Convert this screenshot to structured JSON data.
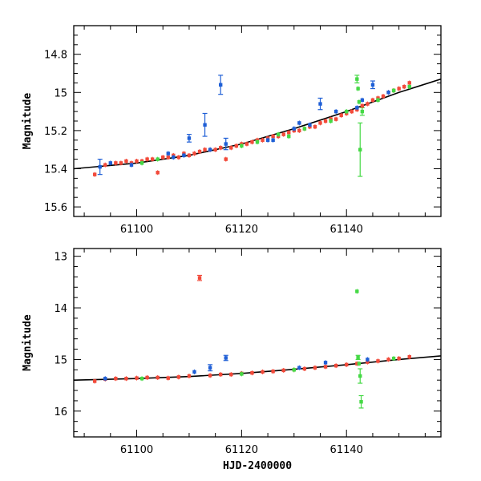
{
  "chart_data": [
    {
      "type": "scatter",
      "title": "",
      "xlabel": "",
      "ylabel": "Magnitude",
      "xlim": [
        61088,
        61158
      ],
      "ylim": [
        15.65,
        14.65
      ],
      "y_inverted": true,
      "xticks": [
        61100,
        61120,
        61140
      ],
      "yticks": [
        14.8,
        15,
        15.2,
        15.4,
        15.6
      ],
      "ytick_labels": [
        "14.8",
        "15",
        "15.2",
        "15.4",
        "15.6"
      ],
      "fit_curve": {
        "name": "model",
        "color": "#000000",
        "x": [
          61088,
          61100,
          61110,
          61120,
          61130,
          61140,
          61150,
          61158
        ],
        "y": [
          15.4,
          15.37,
          15.33,
          15.27,
          15.19,
          15.1,
          15.0,
          14.93
        ]
      },
      "series": [
        {
          "name": "red",
          "color": "#f24a3a",
          "x": [
            61092,
            61094,
            61096,
            61097,
            61098,
            61099,
            61100,
            61101,
            61102,
            61103,
            61104,
            61105,
            61106,
            61107,
            61108,
            61109,
            61110,
            61111,
            61112,
            61113,
            61114,
            61115,
            61116,
            61117,
            61118,
            61119,
            61120,
            61121,
            61122,
            61123,
            61124,
            61125,
            61126,
            61127,
            61128,
            61129,
            61130,
            61131,
            61132,
            61133,
            61134,
            61135,
            61136,
            61137,
            61138,
            61139,
            61140,
            61141,
            61142,
            61143,
            61144,
            61145,
            61146,
            61147,
            61148,
            61149,
            61150,
            61151,
            61152
          ],
          "y": [
            15.43,
            15.38,
            15.37,
            15.37,
            15.36,
            15.37,
            15.36,
            15.36,
            15.35,
            15.35,
            15.42,
            15.34,
            15.34,
            15.33,
            15.34,
            15.32,
            15.33,
            15.32,
            15.31,
            15.3,
            15.3,
            15.3,
            15.29,
            15.35,
            15.29,
            15.28,
            15.27,
            15.27,
            15.26,
            15.25,
            15.25,
            15.24,
            15.23,
            15.23,
            15.22,
            15.21,
            15.2,
            15.2,
            15.19,
            15.18,
            15.18,
            15.16,
            15.15,
            15.14,
            15.14,
            15.12,
            15.11,
            15.1,
            15.09,
            15.07,
            15.06,
            15.04,
            15.03,
            15.02,
            15.0,
            14.99,
            14.98,
            14.97,
            14.95
          ]
        },
        {
          "name": "blue",
          "color": "#1f5fd6",
          "x": [
            61093,
            61095,
            61099,
            61106,
            61107,
            61109,
            61110,
            61113,
            61114,
            61116,
            61117,
            61125,
            61126,
            61130,
            61131,
            61133,
            61135,
            61138,
            61142,
            61143,
            61145,
            61148
          ],
          "y": [
            15.39,
            15.37,
            15.38,
            15.32,
            15.34,
            15.33,
            15.24,
            15.17,
            15.3,
            14.96,
            15.27,
            15.25,
            15.25,
            15.19,
            15.16,
            15.17,
            15.06,
            15.1,
            15.08,
            15.04,
            14.96,
            15.0
          ]
        },
        {
          "name": "green",
          "color": "#45d945",
          "x": [
            61101,
            61104,
            61120,
            61123,
            61127,
            61129,
            61132,
            61137,
            61140,
            61142,
            61142.2,
            61142.4,
            61142.6,
            61143,
            61146,
            61149,
            61152
          ],
          "y": [
            15.37,
            15.35,
            15.28,
            15.26,
            15.22,
            15.23,
            15.19,
            15.15,
            15.1,
            14.93,
            14.98,
            15.05,
            15.3,
            15.1,
            15.04,
            14.99,
            14.97
          ]
        }
      ],
      "error_bars": [
        {
          "series": "blue",
          "x": 61093,
          "y": 15.39,
          "err": 0.04
        },
        {
          "series": "blue",
          "x": 61110,
          "y": 15.24,
          "err": 0.02
        },
        {
          "series": "blue",
          "x": 61113,
          "y": 15.17,
          "err": 0.06
        },
        {
          "series": "blue",
          "x": 61116,
          "y": 14.96,
          "err": 0.05
        },
        {
          "series": "blue",
          "x": 61117,
          "y": 15.27,
          "err": 0.03
        },
        {
          "series": "blue",
          "x": 61135,
          "y": 15.06,
          "err": 0.03
        },
        {
          "series": "blue",
          "x": 61145,
          "y": 14.96,
          "err": 0.02
        },
        {
          "series": "green",
          "x": 61142.6,
          "y": 15.3,
          "err": 0.14
        },
        {
          "series": "green",
          "x": 61142,
          "y": 14.93,
          "err": 0.02
        },
        {
          "series": "green",
          "x": 61143,
          "y": 15.1,
          "err": 0.02
        }
      ]
    },
    {
      "type": "scatter",
      "title": "",
      "xlabel": "HJD-2400000",
      "ylabel": "Magnitude",
      "xlim": [
        61088,
        61158
      ],
      "ylim": [
        16.5,
        12.85
      ],
      "y_inverted": true,
      "xticks": [
        61100,
        61120,
        61140
      ],
      "yticks": [
        13,
        14,
        15,
        16
      ],
      "ytick_labels": [
        "13",
        "14",
        "15",
        "16"
      ],
      "fit_curve": {
        "name": "model",
        "color": "#000000",
        "x": [
          61088,
          61100,
          61110,
          61120,
          61130,
          61140,
          61150,
          61158
        ],
        "y": [
          15.4,
          15.37,
          15.33,
          15.27,
          15.19,
          15.1,
          15.0,
          14.93
        ]
      },
      "series": [
        {
          "name": "red",
          "color": "#f24a3a",
          "x": [
            61092,
            61094,
            61096,
            61098,
            61100,
            61102,
            61104,
            61106,
            61108,
            61110,
            61112,
            61114,
            61116,
            61118,
            61120,
            61122,
            61124,
            61126,
            61128,
            61130,
            61132,
            61134,
            61136,
            61138,
            61140,
            61142,
            61144,
            61146,
            61148,
            61150,
            61152
          ],
          "y": [
            15.42,
            15.38,
            15.37,
            15.37,
            15.36,
            15.35,
            15.35,
            15.36,
            15.34,
            15.32,
            13.42,
            15.31,
            15.29,
            15.29,
            15.27,
            15.26,
            15.24,
            15.23,
            15.21,
            15.2,
            15.18,
            15.16,
            15.14,
            15.12,
            15.1,
            15.08,
            15.05,
            15.03,
            15.0,
            14.98,
            14.95
          ]
        },
        {
          "name": "blue",
          "color": "#1f5fd6",
          "x": [
            61094,
            61111,
            61114,
            61117,
            61131,
            61136,
            61144
          ],
          "y": [
            15.37,
            15.24,
            15.16,
            14.97,
            15.16,
            15.06,
            15.0
          ]
        },
        {
          "name": "green",
          "color": "#45d945",
          "x": [
            61101,
            61120,
            61130,
            61142,
            61142.2,
            61142.4,
            61142.6,
            61142.8,
            61149
          ],
          "y": [
            15.37,
            15.28,
            15.2,
            13.68,
            14.96,
            15.08,
            15.32,
            15.82,
            14.98
          ]
        }
      ],
      "error_bars": [
        {
          "series": "red",
          "x": 61112,
          "y": 13.42,
          "err": 0.05
        },
        {
          "series": "blue",
          "x": 61114,
          "y": 15.16,
          "err": 0.06
        },
        {
          "series": "blue",
          "x": 61117,
          "y": 14.97,
          "err": 0.05
        },
        {
          "series": "green",
          "x": 61142.6,
          "y": 15.32,
          "err": 0.14
        },
        {
          "series": "green",
          "x": 61142.8,
          "y": 15.82,
          "err": 0.12
        },
        {
          "series": "green",
          "x": 61142.2,
          "y": 14.96,
          "err": 0.04
        }
      ]
    }
  ]
}
